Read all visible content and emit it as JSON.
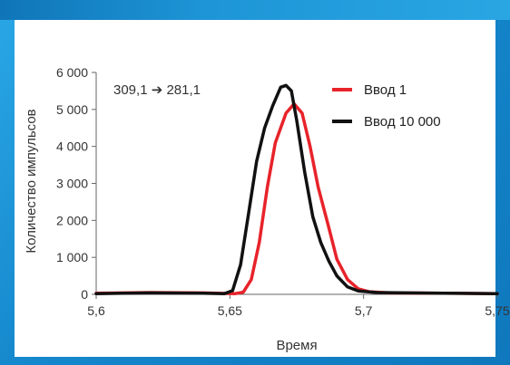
{
  "chart_data": {
    "type": "line",
    "title": "",
    "annotation": "309,1 ➔ 281,1",
    "xlabel": "Время",
    "ylabel": "Количество импульсов",
    "xlim": [
      5.6,
      5.75
    ],
    "ylim": [
      0,
      6000
    ],
    "x_ticks": [
      5.6,
      5.65,
      5.7,
      5.75
    ],
    "x_tick_labels": [
      "5,6",
      "5,65",
      "5,7",
      "5,75"
    ],
    "y_ticks": [
      0,
      1000,
      2000,
      3000,
      4000,
      5000,
      6000
    ],
    "y_tick_labels": [
      "0",
      "1 000",
      "2 000",
      "3 000",
      "4 000",
      "5 000",
      "6 000"
    ],
    "grid": false,
    "legend_position": "top-right",
    "series": [
      {
        "name": "Ввод 1",
        "color": "#e8232a",
        "points": [
          [
            5.6,
            30
          ],
          [
            5.62,
            50
          ],
          [
            5.64,
            40
          ],
          [
            5.652,
            20
          ],
          [
            5.655,
            60
          ],
          [
            5.658,
            400
          ],
          [
            5.661,
            1400
          ],
          [
            5.664,
            2900
          ],
          [
            5.667,
            4100
          ],
          [
            5.671,
            4900
          ],
          [
            5.674,
            5150
          ],
          [
            5.677,
            4900
          ],
          [
            5.68,
            4000
          ],
          [
            5.683,
            2900
          ],
          [
            5.687,
            1800
          ],
          [
            5.69,
            950
          ],
          [
            5.694,
            400
          ],
          [
            5.698,
            150
          ],
          [
            5.702,
            70
          ],
          [
            5.71,
            40
          ],
          [
            5.73,
            30
          ],
          [
            5.75,
            20
          ]
        ]
      },
      {
        "name": "Ввод 10 000",
        "color": "#111111",
        "points": [
          [
            5.6,
            20
          ],
          [
            5.62,
            40
          ],
          [
            5.64,
            30
          ],
          [
            5.648,
            20
          ],
          [
            5.651,
            100
          ],
          [
            5.654,
            800
          ],
          [
            5.657,
            2200
          ],
          [
            5.66,
            3600
          ],
          [
            5.663,
            4500
          ],
          [
            5.666,
            5100
          ],
          [
            5.669,
            5600
          ],
          [
            5.671,
            5650
          ],
          [
            5.673,
            5500
          ],
          [
            5.675,
            4700
          ],
          [
            5.678,
            3300
          ],
          [
            5.681,
            2100
          ],
          [
            5.684,
            1400
          ],
          [
            5.687,
            900
          ],
          [
            5.69,
            500
          ],
          [
            5.694,
            200
          ],
          [
            5.698,
            90
          ],
          [
            5.705,
            50
          ],
          [
            5.73,
            30
          ],
          [
            5.75,
            20
          ]
        ]
      }
    ]
  }
}
